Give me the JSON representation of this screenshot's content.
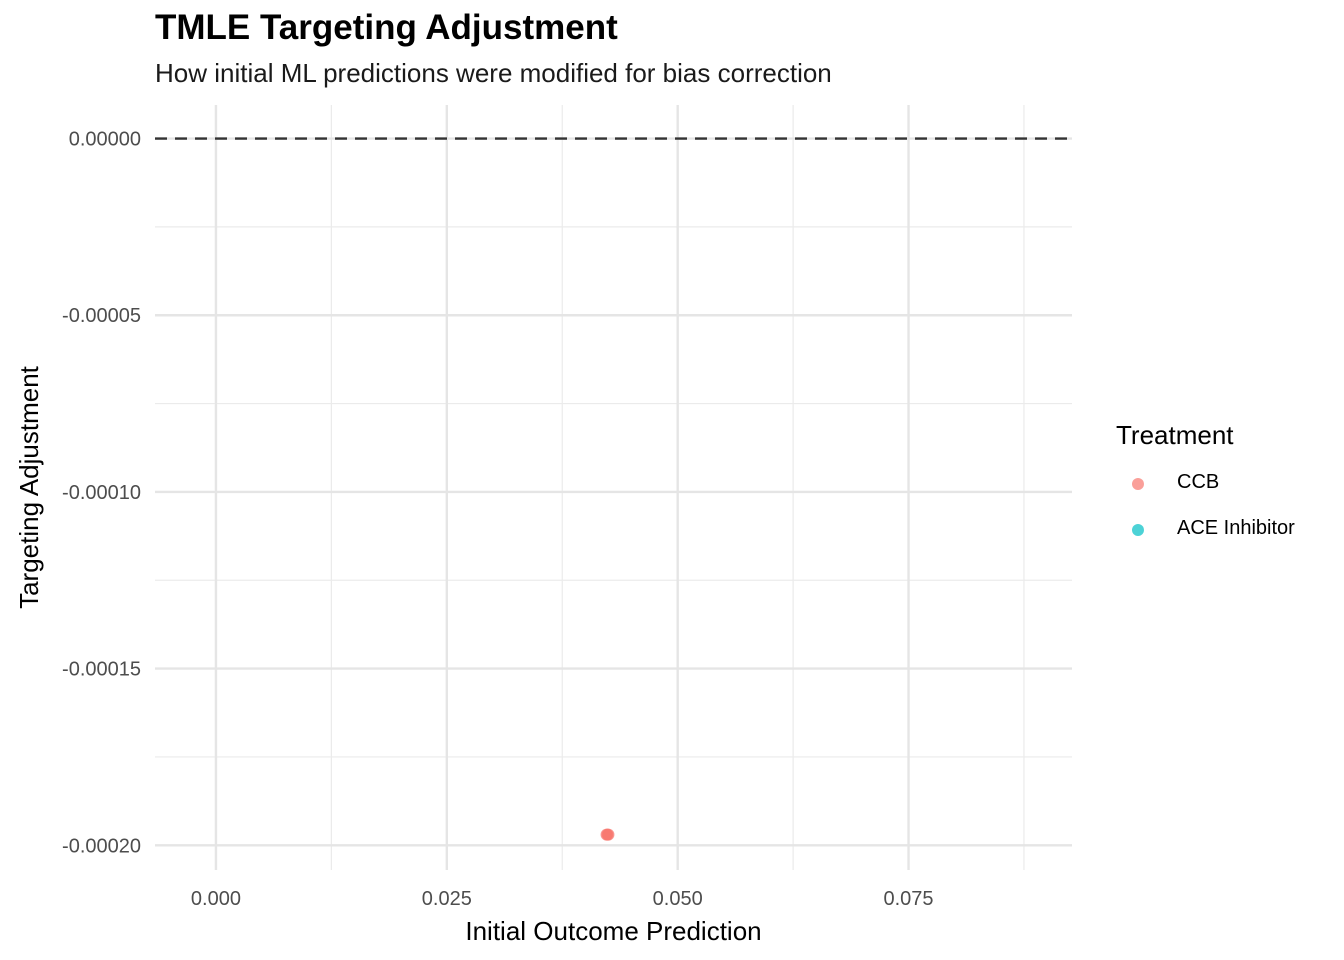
{
  "chart_data": {
    "type": "scatter",
    "title": "TMLE Targeting Adjustment",
    "subtitle": "How initial ML predictions were modified for bias correction",
    "xlabel": "Initial Outcome Prediction",
    "ylabel": "Targeting Adjustment",
    "xlim": [
      -0.0066,
      0.0927
    ],
    "ylim": [
      -0.000207,
      9.5e-06
    ],
    "x_ticks": [
      0.0,
      0.025,
      0.05,
      0.075
    ],
    "x_tick_labels": [
      "0.000",
      "0.025",
      "0.050",
      "0.075"
    ],
    "y_ticks": [
      0.0,
      -5e-05,
      -0.0001,
      -0.00015,
      -0.0002
    ],
    "y_tick_labels": [
      "0.00000",
      "-0.00005",
      "-0.00010",
      "-0.00015",
      "-0.00020"
    ],
    "reference_line": {
      "y": 0,
      "style": "dashed",
      "color": "#333333"
    },
    "grid": true,
    "legend": {
      "title": "Treatment",
      "position": "right",
      "entries": [
        {
          "label": "CCB",
          "color": "#F8766D"
        },
        {
          "label": "ACE Inhibitor",
          "color": "#00BFC4"
        }
      ]
    },
    "series": [
      {
        "name": "CCB",
        "color": "#F8766D",
        "points": [
          {
            "x": 0.0424,
            "y": -0.000197
          },
          {
            "x": 0.0423,
            "y": -0.000197
          },
          {
            "x": 0.0425,
            "y": -0.000197
          }
        ]
      },
      {
        "name": "ACE Inhibitor",
        "color": "#00BFC4",
        "points": []
      }
    ]
  }
}
